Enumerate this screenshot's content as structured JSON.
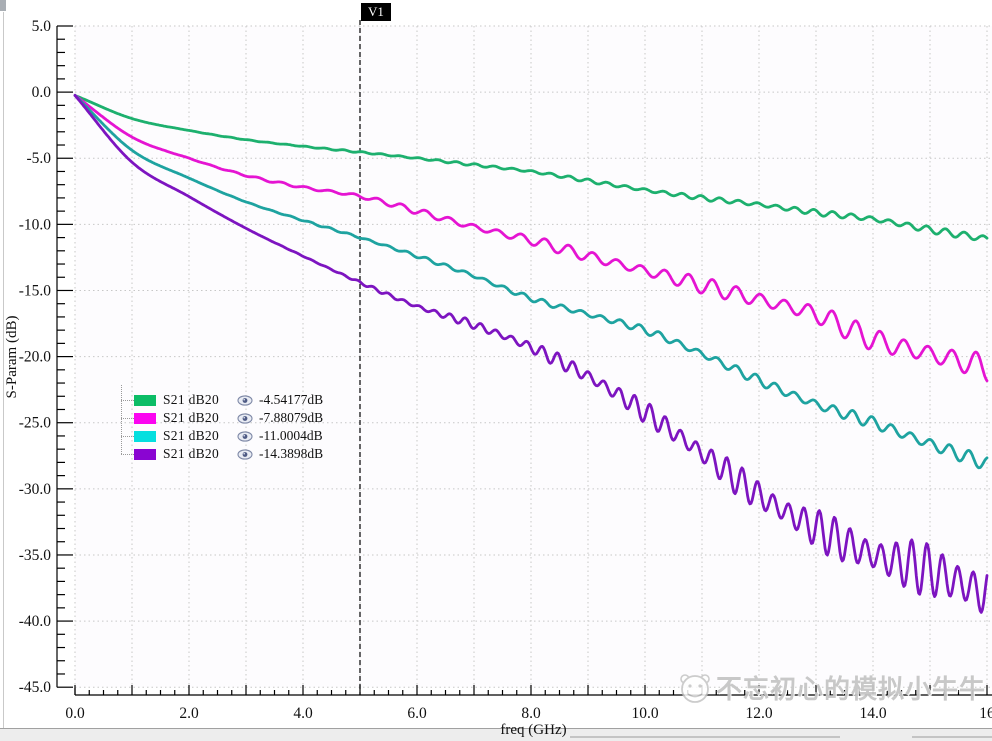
{
  "marker": {
    "label": "V1",
    "freq_ghz": 5.0,
    "readouts": [
      "-4.54177dB",
      "-7.88079dB",
      "-11.0004dB",
      "-14.3898dB"
    ]
  },
  "axes": {
    "x": {
      "label": "freq (GHz)",
      "tick_labels": [
        "0.0",
        "2.0",
        "4.0",
        "6.0",
        "8.0",
        "10.0",
        "12.0",
        "14.0",
        "16"
      ],
      "tick_values": [
        0,
        2,
        4,
        6,
        8,
        10,
        12,
        14,
        16
      ]
    },
    "y": {
      "label": "S-Param (dB)",
      "tick_labels": [
        "5.0",
        "0.0",
        "-5.0",
        "-10.0",
        "-15.0",
        "-20.0",
        "-25.0",
        "-30.0",
        "-35.0",
        "-40.0",
        "-45.0"
      ],
      "tick_values": [
        5,
        0,
        -5,
        -10,
        -15,
        -20,
        -25,
        -30,
        -35,
        -40,
        -45
      ]
    }
  },
  "legend": {
    "rows": [
      {
        "label": "S21 dB20",
        "value": "-4.54177dB",
        "swatch": "#0cbd66",
        "eye": "eye-icon"
      },
      {
        "label": "S21 dB20",
        "value": "-7.88079dB",
        "swatch": "#fb05f0",
        "eye": "eye-icon"
      },
      {
        "label": "S21 dB20",
        "value": "-11.0004dB",
        "swatch": "#05dfdf",
        "eye": "eye-icon"
      },
      {
        "label": "S21 dB20",
        "value": "-14.3898dB",
        "swatch": "#8a05d2",
        "eye": "eye-icon"
      }
    ]
  },
  "watermark": {
    "text": "不忘初心的模拟小牛牛"
  },
  "colors": {
    "grid": "#c7c7c7",
    "axis": "#000000",
    "plot_bg": "#fdfcfe",
    "marker_line": "#000000"
  },
  "chart_data": {
    "type": "line",
    "title": "",
    "xlabel": "freq (GHz)",
    "ylabel": "S-Param (dB)",
    "xlim": [
      0,
      16
    ],
    "ylim": [
      -45,
      5
    ],
    "x_major_tick": 1,
    "x_minor_tick": 0.25,
    "x_label_step": 2,
    "y_major_tick": 5,
    "y_minor_tick": 1,
    "grid": "dotted",
    "legend_position": "inside-left",
    "marker": {
      "name": "V1",
      "x": 5.0,
      "values": [
        -4.54177,
        -7.88079,
        -11.0004,
        -14.3898
      ]
    },
    "x": [
      0,
      1,
      2,
      3,
      4,
      5,
      6,
      7,
      8,
      9,
      10,
      11,
      12,
      13,
      14,
      15,
      16
    ],
    "series": [
      {
        "name": "S21 dB20",
        "color": "#1db06e",
        "y": [
          -0.25,
          -2.0,
          -2.9,
          -3.6,
          -4.1,
          -4.54,
          -5.0,
          -5.5,
          -6.0,
          -6.7,
          -7.4,
          -8.0,
          -8.5,
          -9.1,
          -9.6,
          -10.4,
          -11.1
        ],
        "ripple": {
          "amp": 0.28,
          "start": 1.0,
          "growth": 1.2,
          "period": 0.33,
          "beat": 0.4,
          "beat_period": 2.1
        }
      },
      {
        "name": "S21 dB20",
        "color": "#e514d2",
        "y": [
          -0.25,
          -3.4,
          -5.0,
          -6.3,
          -7.2,
          -7.88,
          -9.0,
          -10.2,
          -11.2,
          -12.4,
          -13.5,
          -14.6,
          -15.7,
          -16.8,
          -18.7,
          -19.8,
          -20.8
        ],
        "ripple": {
          "amp": 1.1,
          "start": 1.0,
          "growth": 1.4,
          "period": 0.42,
          "beat": 0.45,
          "beat_period": 2.6
        }
      },
      {
        "name": "S21 dB20",
        "color": "#1ea3a0",
        "y": [
          -0.25,
          -4.4,
          -6.5,
          -8.3,
          -9.7,
          -11.0,
          -12.4,
          -13.9,
          -15.6,
          -16.8,
          -18.0,
          -19.8,
          -21.8,
          -23.6,
          -25.0,
          -26.6,
          -28.1
        ],
        "ripple": {
          "amp": 0.55,
          "start": 2.0,
          "growth": 1.2,
          "period": 0.34,
          "beat": 0.4,
          "beat_period": 1.9
        }
      },
      {
        "name": "S21 dB20",
        "color": "#7d14c0",
        "y": [
          -0.25,
          -5.3,
          -7.9,
          -10.3,
          -12.4,
          -14.39,
          -16.2,
          -17.6,
          -19.3,
          -21.5,
          -24.2,
          -27.3,
          -30.5,
          -33.0,
          -35.0,
          -36.2,
          -38.0
        ],
        "ripple": {
          "amp": 2.4,
          "start": 3.0,
          "growth": 1.7,
          "period": 0.27,
          "beat": 0.5,
          "beat_period": 1.6
        }
      }
    ]
  }
}
